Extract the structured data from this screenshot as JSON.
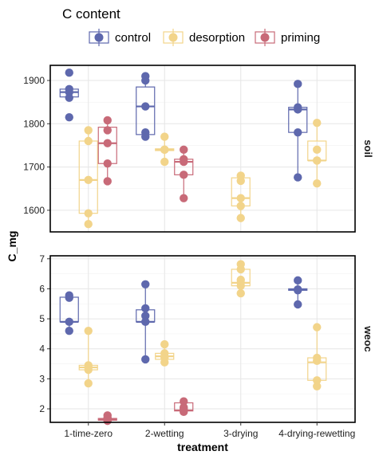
{
  "chart_data": {
    "type": "box",
    "legend": {
      "title": "C content",
      "placement": "top",
      "entries": [
        {
          "name": "control",
          "color": "#5e68ad"
        },
        {
          "name": "desorption",
          "color": "#f2d48a"
        },
        {
          "name": "priming",
          "color": "#c86a78"
        }
      ]
    },
    "xlabel": "treatment",
    "ylabel": "C_mg",
    "categories": [
      "1-time-zero",
      "2-wetting",
      "3-drying",
      "4-drying-rewetting"
    ],
    "grid": true,
    "facets": [
      {
        "label": "soil",
        "ylim": [
          1550,
          1935
        ],
        "yticks": [
          1600,
          1700,
          1800,
          1900
        ],
        "groups": [
          {
            "category": "1-time-zero",
            "series": "control",
            "points": [
              1918,
              1880,
              1873,
              1860,
              1815
            ],
            "box": [
              1860,
              1862,
              1873,
              1880,
              1880
            ]
          },
          {
            "category": "1-time-zero",
            "series": "desorption",
            "points": [
              1785,
              1760,
              1670,
              1593,
              1568
            ],
            "box": [
              1568,
              1593,
              1670,
              1760,
              1785
            ]
          },
          {
            "category": "1-time-zero",
            "series": "priming",
            "points": [
              1808,
              1785,
              1755,
              1708,
              1667
            ],
            "box": [
              1667,
              1708,
              1755,
              1792,
              1808
            ]
          },
          {
            "category": "2-wetting",
            "series": "control",
            "points": [
              1910,
              1900,
              1840,
              1780,
              1770
            ],
            "box": [
              1770,
              1775,
              1840,
              1885,
              1910
            ]
          },
          {
            "category": "2-wetting",
            "series": "desorption",
            "points": [
              1770,
              1740,
              1740,
              1740,
              1712
            ],
            "box": [
              1712,
              1738,
              1740,
              1742,
              1770
            ]
          },
          {
            "category": "2-wetting",
            "series": "priming",
            "points": [
              1740,
              1718,
              1712,
              1682,
              1628
            ],
            "box": [
              1628,
              1682,
              1712,
              1718,
              1740
            ]
          },
          {
            "category": "3-drying",
            "series": "desorption",
            "points": [
              1680,
              1668,
              1628,
              1610,
              1582
            ],
            "box": [
              1582,
              1610,
              1628,
              1675,
              1680
            ]
          },
          {
            "category": "4-drying-rewetting",
            "series": "control",
            "points": [
              1892,
              1838,
              1833,
              1780,
              1676
            ],
            "box": [
              1676,
              1780,
              1833,
              1838,
              1892
            ]
          },
          {
            "category": "4-drying-rewetting",
            "series": "desorption",
            "points": [
              1802,
              1740,
              1715,
              1715,
              1662
            ],
            "box": [
              1662,
              1715,
              1715,
              1760,
              1802
            ]
          }
        ]
      },
      {
        "label": "weoc",
        "ylim": [
          1.55,
          7.1
        ],
        "yticks": [
          2,
          3,
          4,
          5,
          6,
          7
        ],
        "groups": [
          {
            "category": "1-time-zero",
            "series": "control",
            "points": [
              5.78,
              5.7,
              4.9,
              4.6
            ],
            "box": [
              4.6,
              4.9,
              4.9,
              5.72,
              5.78
            ]
          },
          {
            "category": "1-time-zero",
            "series": "desorption",
            "points": [
              4.6,
              3.45,
              3.38,
              3.3,
              2.85
            ],
            "box": [
              2.85,
              3.3,
              3.38,
              3.45,
              4.6
            ]
          },
          {
            "category": "1-time-zero",
            "series": "priming",
            "points": [
              1.78,
              1.7,
              1.65,
              1.63,
              1.6
            ],
            "box": [
              1.6,
              1.62,
              1.65,
              1.68,
              1.78
            ]
          },
          {
            "category": "2-wetting",
            "series": "control",
            "points": [
              6.15,
              5.35,
              5.1,
              4.9,
              3.65
            ],
            "box": [
              3.65,
              4.9,
              4.9,
              5.3,
              6.15
            ]
          },
          {
            "category": "2-wetting",
            "series": "desorption",
            "points": [
              4.15,
              3.85,
              3.75,
              3.7,
              3.55
            ],
            "box": [
              3.55,
              3.65,
              3.75,
              3.85,
              4.15
            ]
          },
          {
            "category": "2-wetting",
            "series": "priming",
            "points": [
              2.25,
              2.05,
              2.0,
              1.95,
              1.9
            ],
            "box": [
              1.9,
              1.93,
              1.95,
              2.2,
              2.25
            ]
          },
          {
            "category": "3-drying",
            "series": "desorption",
            "points": [
              6.82,
              6.65,
              6.3,
              6.2,
              6.1,
              5.85
            ],
            "box": [
              5.85,
              6.1,
              6.2,
              6.65,
              6.82
            ]
          },
          {
            "category": "4-drying-rewetting",
            "series": "control",
            "points": [
              6.28,
              5.98,
              5.95,
              5.48
            ],
            "box": [
              5.48,
              5.95,
              5.97,
              6.0,
              6.28
            ]
          },
          {
            "category": "4-drying-rewetting",
            "series": "desorption",
            "points": [
              4.72,
              3.7,
              3.6,
              2.95,
              2.75
            ],
            "box": [
              2.75,
              2.95,
              3.55,
              3.7,
              4.72
            ]
          }
        ]
      }
    ]
  }
}
